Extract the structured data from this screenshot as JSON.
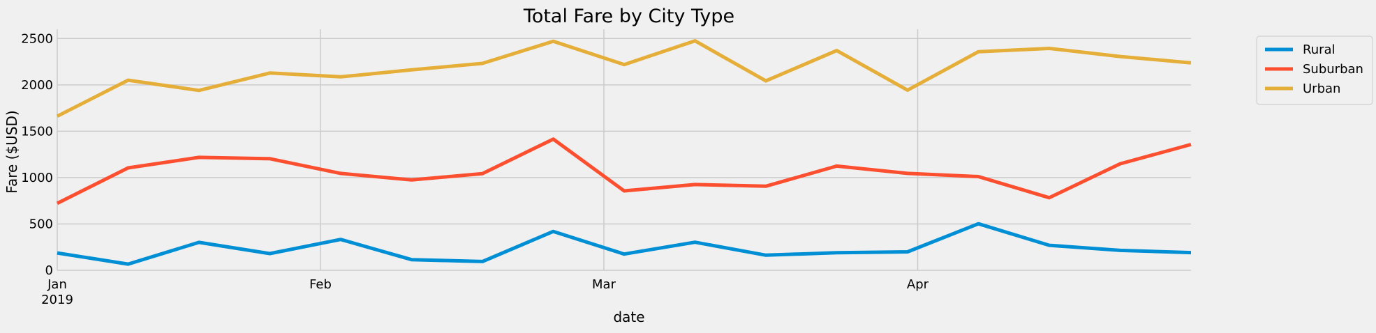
{
  "chart_data": {
    "type": "line",
    "title": "Total Fare by City Type",
    "xlabel": "date",
    "ylabel": "Fare ($USD)",
    "x": [
      "2019-01-06",
      "2019-01-13",
      "2019-01-20",
      "2019-01-27",
      "2019-02-03",
      "2019-02-10",
      "2019-02-17",
      "2019-02-24",
      "2019-03-03",
      "2019-03-10",
      "2019-03-17",
      "2019-03-24",
      "2019-03-31",
      "2019-04-07",
      "2019-04-14",
      "2019-04-21",
      "2019-04-28"
    ],
    "x_ticks": [
      {
        "date": "2019-01-06",
        "label": "Jan",
        "sublabel": "2019"
      },
      {
        "date": "2019-02-01",
        "label": "Feb",
        "sublabel": ""
      },
      {
        "date": "2019-03-01",
        "label": "Mar",
        "sublabel": ""
      },
      {
        "date": "2019-04-01",
        "label": "Apr",
        "sublabel": ""
      }
    ],
    "xlim": [
      "2019-01-06",
      "2019-04-28"
    ],
    "ylim": [
      0,
      2600
    ],
    "y_ticks": [
      0,
      500,
      1000,
      1500,
      2000,
      2500
    ],
    "grid": true,
    "legend": "outside-top-right",
    "series": [
      {
        "name": "Rural",
        "color": "#008fd5",
        "values": [
          187,
          67,
          301,
          180,
          333,
          115,
          95,
          419,
          175,
          303,
          163,
          189,
          199,
          502,
          270,
          215,
          191
        ]
      },
      {
        "name": "Suburban",
        "color": "#fc4f30",
        "values": [
          722,
          1105,
          1218,
          1204,
          1045,
          975,
          1043,
          1415,
          857,
          925,
          907,
          1124,
          1045,
          1011,
          783,
          1149,
          1357
        ]
      },
      {
        "name": "Urban",
        "color": "#e5ae38",
        "values": [
          1662,
          2051,
          1940,
          2128,
          2087,
          2162,
          2232,
          2470,
          2219,
          2475,
          2043,
          2370,
          1943,
          2358,
          2393,
          2306,
          2238
        ]
      }
    ]
  }
}
